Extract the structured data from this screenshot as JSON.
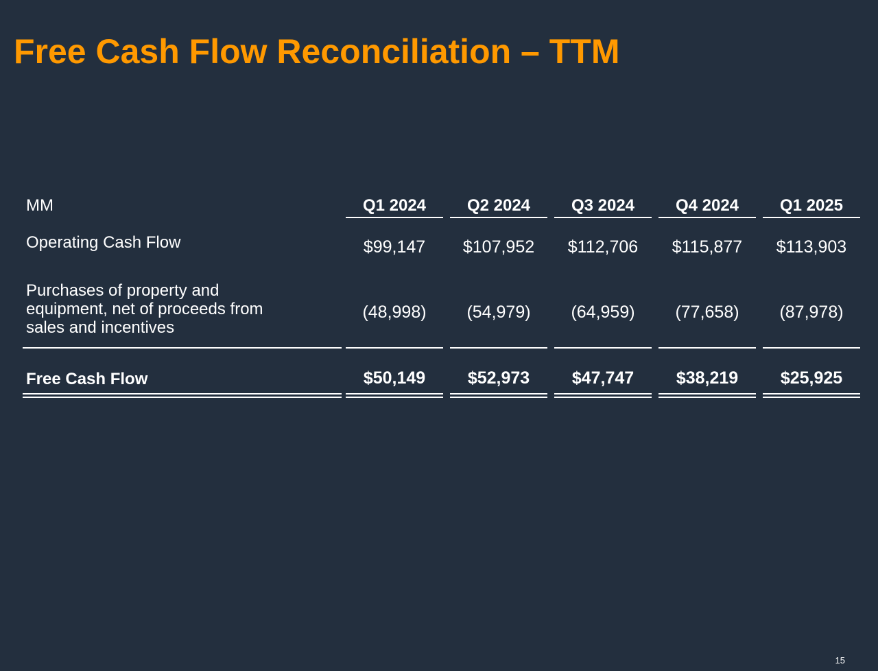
{
  "slide": {
    "title": "Free Cash Flow Reconciliation – TTM",
    "page_number": "15"
  },
  "table": {
    "units_label": "MM",
    "columns": [
      "Q1 2024",
      "Q2 2024",
      "Q3 2024",
      "Q4 2024",
      "Q1 2025"
    ],
    "rows": [
      {
        "label": "Operating Cash Flow",
        "values": [
          "$99,147",
          "$107,952",
          "$112,706",
          "$115,877",
          "$113,903"
        ]
      },
      {
        "label": "Purchases of property and equipment, net of proceeds from sales and incentives",
        "label_lines": [
          "Purchases of property and",
          "equipment, net of proceeds from",
          "sales and incentives"
        ],
        "values": [
          "(48,998)",
          "(54,979)",
          "(64,959)",
          "(77,658)",
          "(87,978)"
        ]
      },
      {
        "label": "Free Cash Flow",
        "values": [
          "$50,149",
          "$52,973",
          "$47,747",
          "$38,219",
          "$25,925"
        ]
      }
    ]
  },
  "colors": {
    "background": "#232f3e",
    "title": "#ff9900",
    "text": "#ffffff"
  }
}
